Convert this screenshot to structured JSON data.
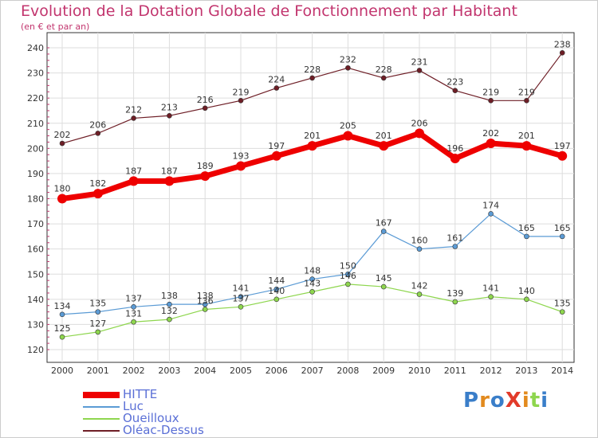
{
  "chart_data": {
    "type": "line",
    "title": "Evolution de la Dotation Globale de Fonctionnement par Habitant",
    "subtitle": "(en € et par an)",
    "xlabel": "",
    "ylabel": "",
    "ylim": [
      120,
      240
    ],
    "yticks": [
      "120",
      "130",
      "140",
      "150",
      "160",
      "170",
      "180",
      "190",
      "200",
      "210",
      "220",
      "230",
      "240"
    ],
    "categories": [
      "2000",
      "2001",
      "2002",
      "2003",
      "2004",
      "2005",
      "2006",
      "2007",
      "2008",
      "2009",
      "2010",
      "2011",
      "2012",
      "2013",
      "2014"
    ],
    "series": [
      {
        "name": "Oléac-Dessus",
        "color": "#6e1e26",
        "values": [
          202,
          206,
          212,
          213,
          216,
          219,
          224,
          228,
          232,
          228,
          231,
          223,
          219,
          219,
          238
        ]
      },
      {
        "name": "Luc",
        "color": "#5b9bd5",
        "values": [
          134,
          135,
          137,
          138,
          138,
          141,
          144,
          148,
          150,
          167,
          160,
          161,
          174,
          165,
          165
        ]
      },
      {
        "name": "Oueilloux",
        "color": "#8ed64e",
        "values": [
          125,
          127,
          131,
          132,
          136,
          137,
          140,
          143,
          146,
          145,
          142,
          139,
          141,
          140,
          135
        ]
      },
      {
        "name": "HITTE",
        "color": "#ee0000",
        "values": [
          180,
          182,
          187,
          187,
          189,
          193,
          197,
          201,
          205,
          201,
          206,
          196,
          202,
          201,
          197
        ]
      }
    ],
    "legend": [
      "HITTE",
      "Luc",
      "Oueilloux",
      "Oléac-Dessus"
    ]
  },
  "logo_text": "ProXiti",
  "colors": {
    "title": "#c2356e",
    "legend_text": "#5a6fd6",
    "grid": "#dddddd",
    "axis": "#333333"
  }
}
